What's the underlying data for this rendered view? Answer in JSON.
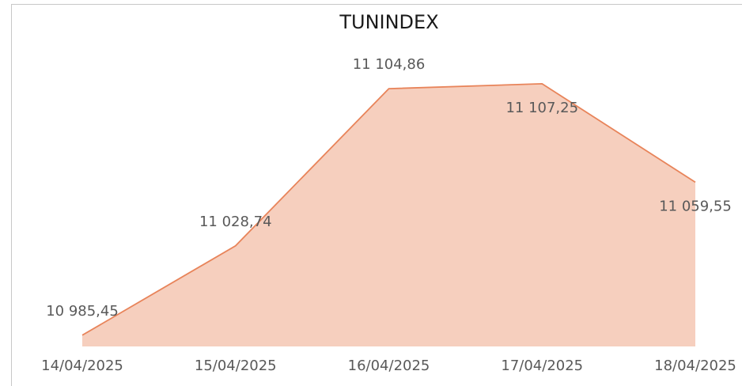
{
  "chart_data": {
    "type": "area",
    "title": "TUNINDEX",
    "categories": [
      "14/04/2025",
      "15/04/2025",
      "16/04/2025",
      "17/04/2025",
      "18/04/2025"
    ],
    "values": [
      10985.45,
      11028.74,
      11104.86,
      11107.25,
      11059.55
    ],
    "value_labels": [
      "10 985,45",
      "11 028,74",
      "11 104,86",
      "11 107,25",
      "11 059,55"
    ],
    "color": "#f6cfbe",
    "line_color": "#e8845a",
    "ylim": [
      10980,
      11130
    ]
  }
}
